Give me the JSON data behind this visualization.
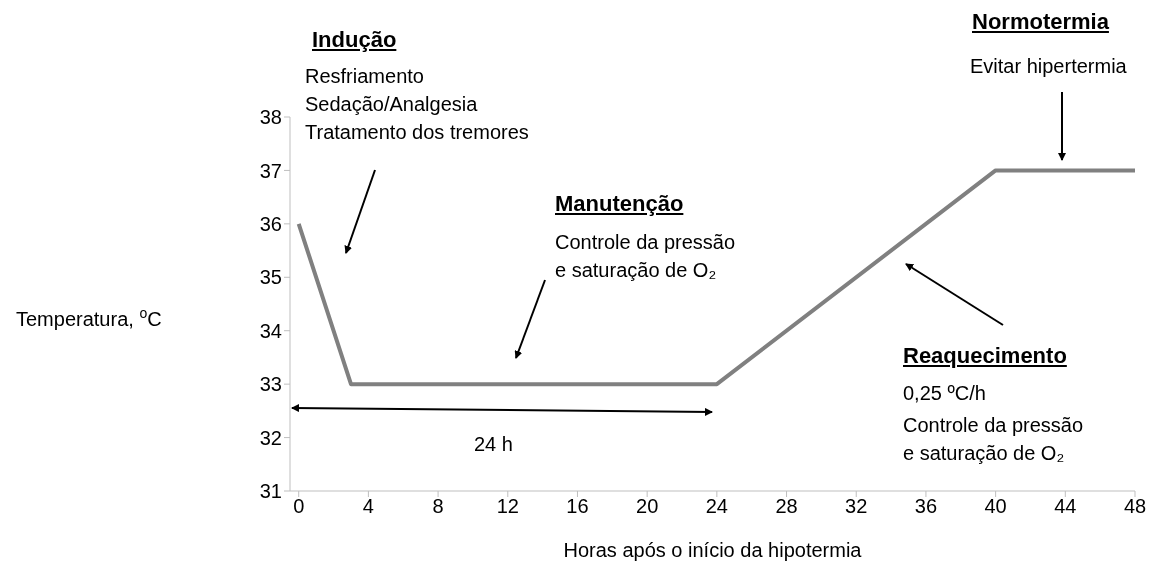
{
  "chart_data": {
    "type": "line",
    "xlabel": "Horas após o início da hipotermia",
    "ylabel": "Temperatura, $^{o}$C",
    "x": [
      0,
      3,
      24,
      40,
      48
    ],
    "series": [
      {
        "color": "#808080",
        "values": [
          36,
          33,
          33,
          37,
          37
        ]
      }
    ],
    "xlim": [
      -0.5,
      48
    ],
    "xticks": [
      0,
      4,
      8,
      12,
      16,
      20,
      24,
      28,
      32,
      36,
      40,
      44,
      48
    ],
    "ylim": [
      31,
      38
    ],
    "yticks": [
      31,
      32,
      33,
      34,
      35,
      36,
      37,
      38
    ],
    "grid": false,
    "legend": false,
    "marker": "none",
    "line_style": "solid",
    "annotations": [
      "Indução",
      "Resfriamento\nSedação/Analgesia\nTratamento dos tremores",
      "Manutenção",
      "Controle da pressão\ne saturação de O₂",
      "24 h",
      "Normotermia",
      "Evitar hipertermia",
      "Reaquecimento",
      "0,25 ºC/h",
      "Controle da pressão\ne saturação de O₂"
    ]
  }
}
